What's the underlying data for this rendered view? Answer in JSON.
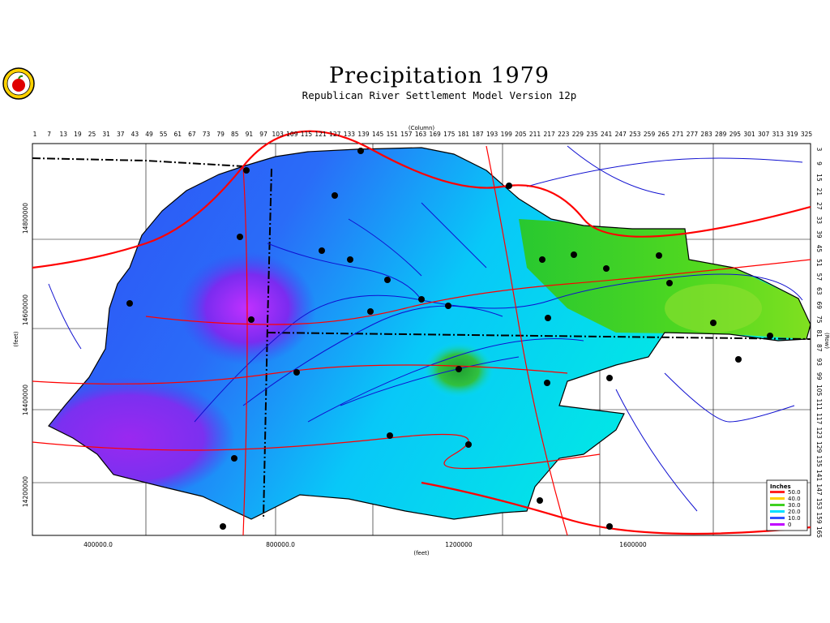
{
  "title": "Precipitation  1979",
  "subtitle": "Republican River Settlement Model Version 12p",
  "logo": {
    "icon": "apple-logo-icon"
  },
  "axes": {
    "column_label": "(Column)",
    "row_label": "(Row)",
    "x_label": "(feet)",
    "y_label": "(feet)",
    "columns": [
      "1",
      "7",
      "13",
      "19",
      "25",
      "31",
      "37",
      "43",
      "49",
      "55",
      "61",
      "67",
      "73",
      "79",
      "85",
      "91",
      "97",
      "103",
      "109",
      "115",
      "121",
      "127",
      "133",
      "139",
      "145",
      "151",
      "157",
      "163",
      "169",
      "175",
      "181",
      "187",
      "193",
      "199",
      "205",
      "211",
      "217",
      "223",
      "229",
      "235",
      "241",
      "247",
      "253",
      "259",
      "265",
      "271",
      "277",
      "283",
      "289",
      "295",
      "301",
      "307",
      "313",
      "319",
      "325"
    ],
    "rows": [
      "3",
      "9",
      "15",
      "21",
      "27",
      "33",
      "39",
      "45",
      "51",
      "57",
      "63",
      "69",
      "75",
      "81",
      "87",
      "93",
      "99",
      "105",
      "111",
      "117",
      "123",
      "129",
      "135",
      "141",
      "147",
      "153",
      "159",
      "165"
    ],
    "x_ticks": [
      "400000.0",
      "800000.0",
      "1200000",
      "1600000"
    ],
    "y_ticks": [
      "14800000",
      "14600000",
      "14400000",
      "14200000"
    ]
  },
  "legend": {
    "title": "Inches",
    "items": [
      {
        "label": "50.0",
        "color": "#ff2020"
      },
      {
        "label": "40.0",
        "color": "#ffd000"
      },
      {
        "label": "30.0",
        "color": "#40d020"
      },
      {
        "label": "20.0",
        "color": "#00e0ff"
      },
      {
        "label": "10.0",
        "color": "#3050ff"
      },
      {
        "label": "0",
        "color": "#c000ff"
      }
    ]
  },
  "colors": {
    "river": "#1010d0",
    "road": "#ff0000",
    "boundary": "#000000",
    "grid": "#000000"
  }
}
